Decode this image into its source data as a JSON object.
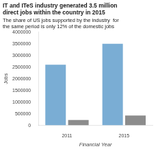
{
  "chart_data": {
    "type": "bar",
    "title": [
      "IT and ITeS industry generated 3.5 million",
      "direct jobs within the country in 2015"
    ],
    "subtitle": [
      "The share of US jobs supported by the industry  for",
      "the same period is only 12% of the domestic jobs"
    ],
    "xlabel": "Financial Year",
    "ylabel": "Jobs",
    "categories": [
      "2011",
      "2015"
    ],
    "series": [
      {
        "color": "#7aadd4",
        "values": [
          2600000,
          3500000
        ]
      },
      {
        "color": "#8c8c8c",
        "values": [
          230000,
          420000
        ]
      }
    ],
    "ylim": [
      0,
      4000000
    ],
    "yticks": [
      0,
      500000,
      1000000,
      1500000,
      2000000,
      2500000,
      3000000,
      3500000,
      4000000
    ],
    "grid": false
  }
}
